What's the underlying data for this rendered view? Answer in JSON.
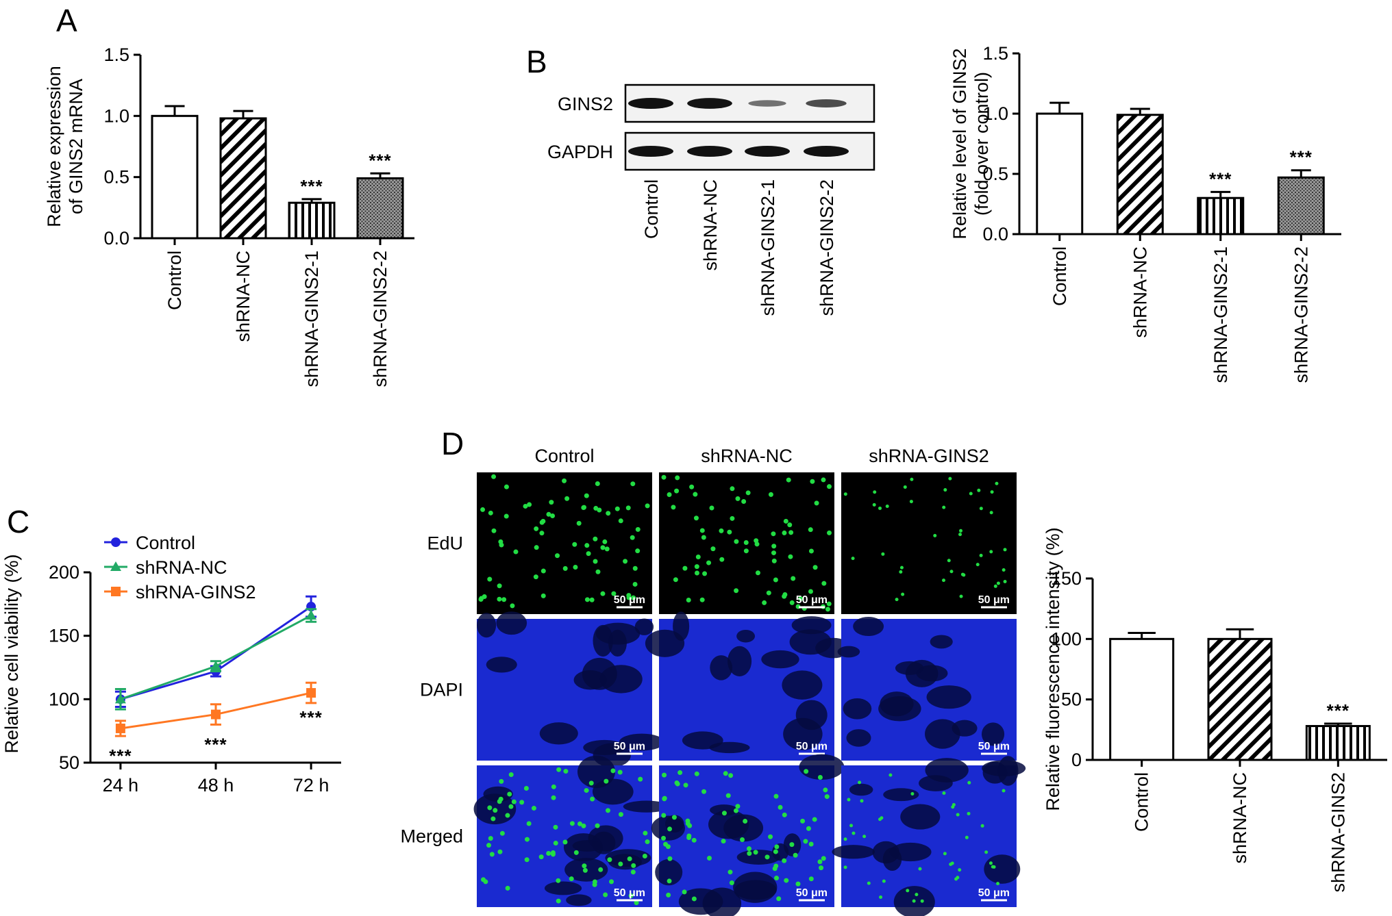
{
  "panels": {
    "a": {
      "label": "A"
    },
    "b": {
      "label": "B"
    },
    "c": {
      "label": "C"
    },
    "d": {
      "label": "D"
    }
  },
  "colors": {
    "control": "#2222dd",
    "shrna_nc": "#22aa66",
    "shrna_gins2": "#ff7722",
    "edu": "#22dd44",
    "dapi": "#1a2ad0"
  },
  "western_blot": {
    "bands": [
      {
        "name": "GINS2",
        "intensities": [
          1.0,
          0.98,
          0.35,
          0.6
        ]
      },
      {
        "name": "GAPDH",
        "intensities": [
          1.0,
          1.0,
          1.0,
          1.0
        ]
      }
    ],
    "lanes": [
      "Control",
      "shRNA-NC",
      "shRNA-GINS2-1",
      "shRNA-GINS2-2"
    ]
  },
  "microscopy": {
    "columns": [
      "Control",
      "shRNA-NC",
      "shRNA-GINS2"
    ],
    "rows": [
      "EdU",
      "DAPI",
      "Merged"
    ],
    "scale_bar": "50 μm"
  },
  "chart_data": [
    {
      "id": "A",
      "type": "bar",
      "ylabel_lines": [
        "Relative expression",
        "of GINS2 mRNA"
      ],
      "ylim": [
        0,
        1.5
      ],
      "yticks": [
        "0.0",
        "0.5",
        "1.0",
        "1.5"
      ],
      "categories": [
        "Control",
        "shRNA-NC",
        "shRNA-GINS2-1",
        "shRNA-GINS2-2"
      ],
      "values": [
        1.0,
        0.98,
        0.29,
        0.49
      ],
      "errors": [
        0.08,
        0.06,
        0.03,
        0.04
      ],
      "patterns": [
        "white",
        "diag",
        "vert",
        "dots"
      ],
      "significance": [
        "",
        "",
        "***",
        "***"
      ]
    },
    {
      "id": "B",
      "type": "bar",
      "ylabel_lines": [
        "Relative level of GINS2",
        "(fold over control)"
      ],
      "ylim": [
        0,
        1.5
      ],
      "yticks": [
        "0.0",
        "0.5",
        "1.0",
        "1.5"
      ],
      "categories": [
        "Control",
        "shRNA-NC",
        "shRNA-GINS2-1",
        "shRNA-GINS2-2"
      ],
      "values": [
        1.0,
        0.99,
        0.3,
        0.47
      ],
      "errors": [
        0.09,
        0.05,
        0.05,
        0.06
      ],
      "patterns": [
        "white",
        "diag",
        "vert",
        "dots"
      ],
      "significance": [
        "",
        "",
        "***",
        "***"
      ]
    },
    {
      "id": "C",
      "type": "line",
      "ylabel": "Relative cell viability (%)",
      "ylim": [
        50,
        200
      ],
      "yticks": [
        "50",
        "100",
        "150",
        "200"
      ],
      "x": [
        "24 h",
        "48 h",
        "72 h"
      ],
      "series": [
        {
          "name": "Control",
          "values": [
            100,
            122,
            173
          ],
          "errors": [
            6,
            4,
            8
          ],
          "color": "#2222dd",
          "marker": "circle"
        },
        {
          "name": "shRNA-NC",
          "values": [
            100,
            126,
            166
          ],
          "errors": [
            8,
            4,
            5
          ],
          "color": "#22aa66",
          "marker": "triangle"
        },
        {
          "name": "shRNA-GINS2",
          "values": [
            77,
            88,
            105
          ],
          "errors": [
            6,
            8,
            8
          ],
          "color": "#ff7722",
          "marker": "square"
        }
      ],
      "significance": [
        "***",
        "***",
        "***"
      ],
      "legend": "top-left"
    },
    {
      "id": "D",
      "type": "bar",
      "ylabel": "Relative fluorescence intensity (%)",
      "ylim": [
        0,
        150
      ],
      "yticks": [
        "0",
        "50",
        "100",
        "150"
      ],
      "categories": [
        "Control",
        "shRNA-NC",
        "shRNA-GINS2"
      ],
      "values": [
        100,
        100,
        28
      ],
      "errors": [
        5,
        8,
        2
      ],
      "patterns": [
        "white",
        "diag",
        "vert"
      ],
      "significance": [
        "",
        "",
        "***"
      ]
    }
  ]
}
